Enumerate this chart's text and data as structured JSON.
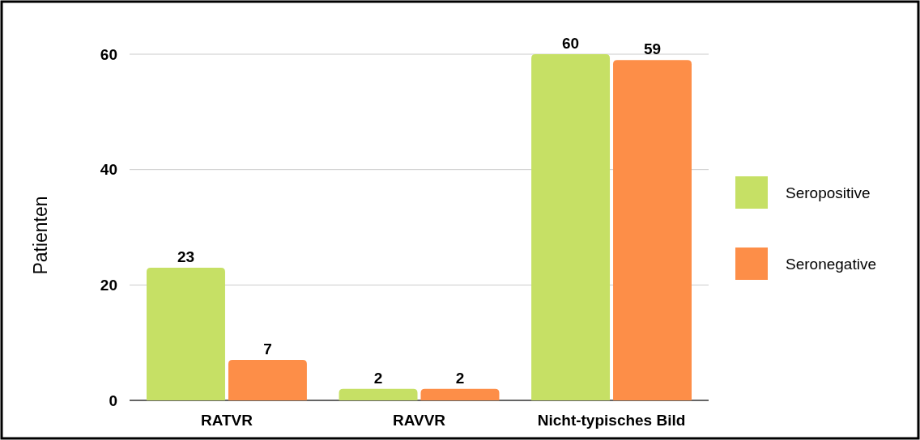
{
  "chart_data": {
    "type": "bar",
    "ylabel": "Patienten",
    "categories": [
      "RATVR",
      "RAVVR",
      "Nicht-typisches Bild"
    ],
    "series": [
      {
        "name": "Seropositive",
        "color": "#c6e065",
        "values": [
          23,
          2,
          60
        ]
      },
      {
        "name": "Seronegative",
        "color": "#fd8e48",
        "values": [
          7,
          2,
          59
        ]
      }
    ],
    "ylim": [
      0,
      60
    ],
    "yticks": [
      0,
      20,
      40,
      60
    ],
    "grid": "y",
    "legend": "right",
    "data_labels": true
  }
}
